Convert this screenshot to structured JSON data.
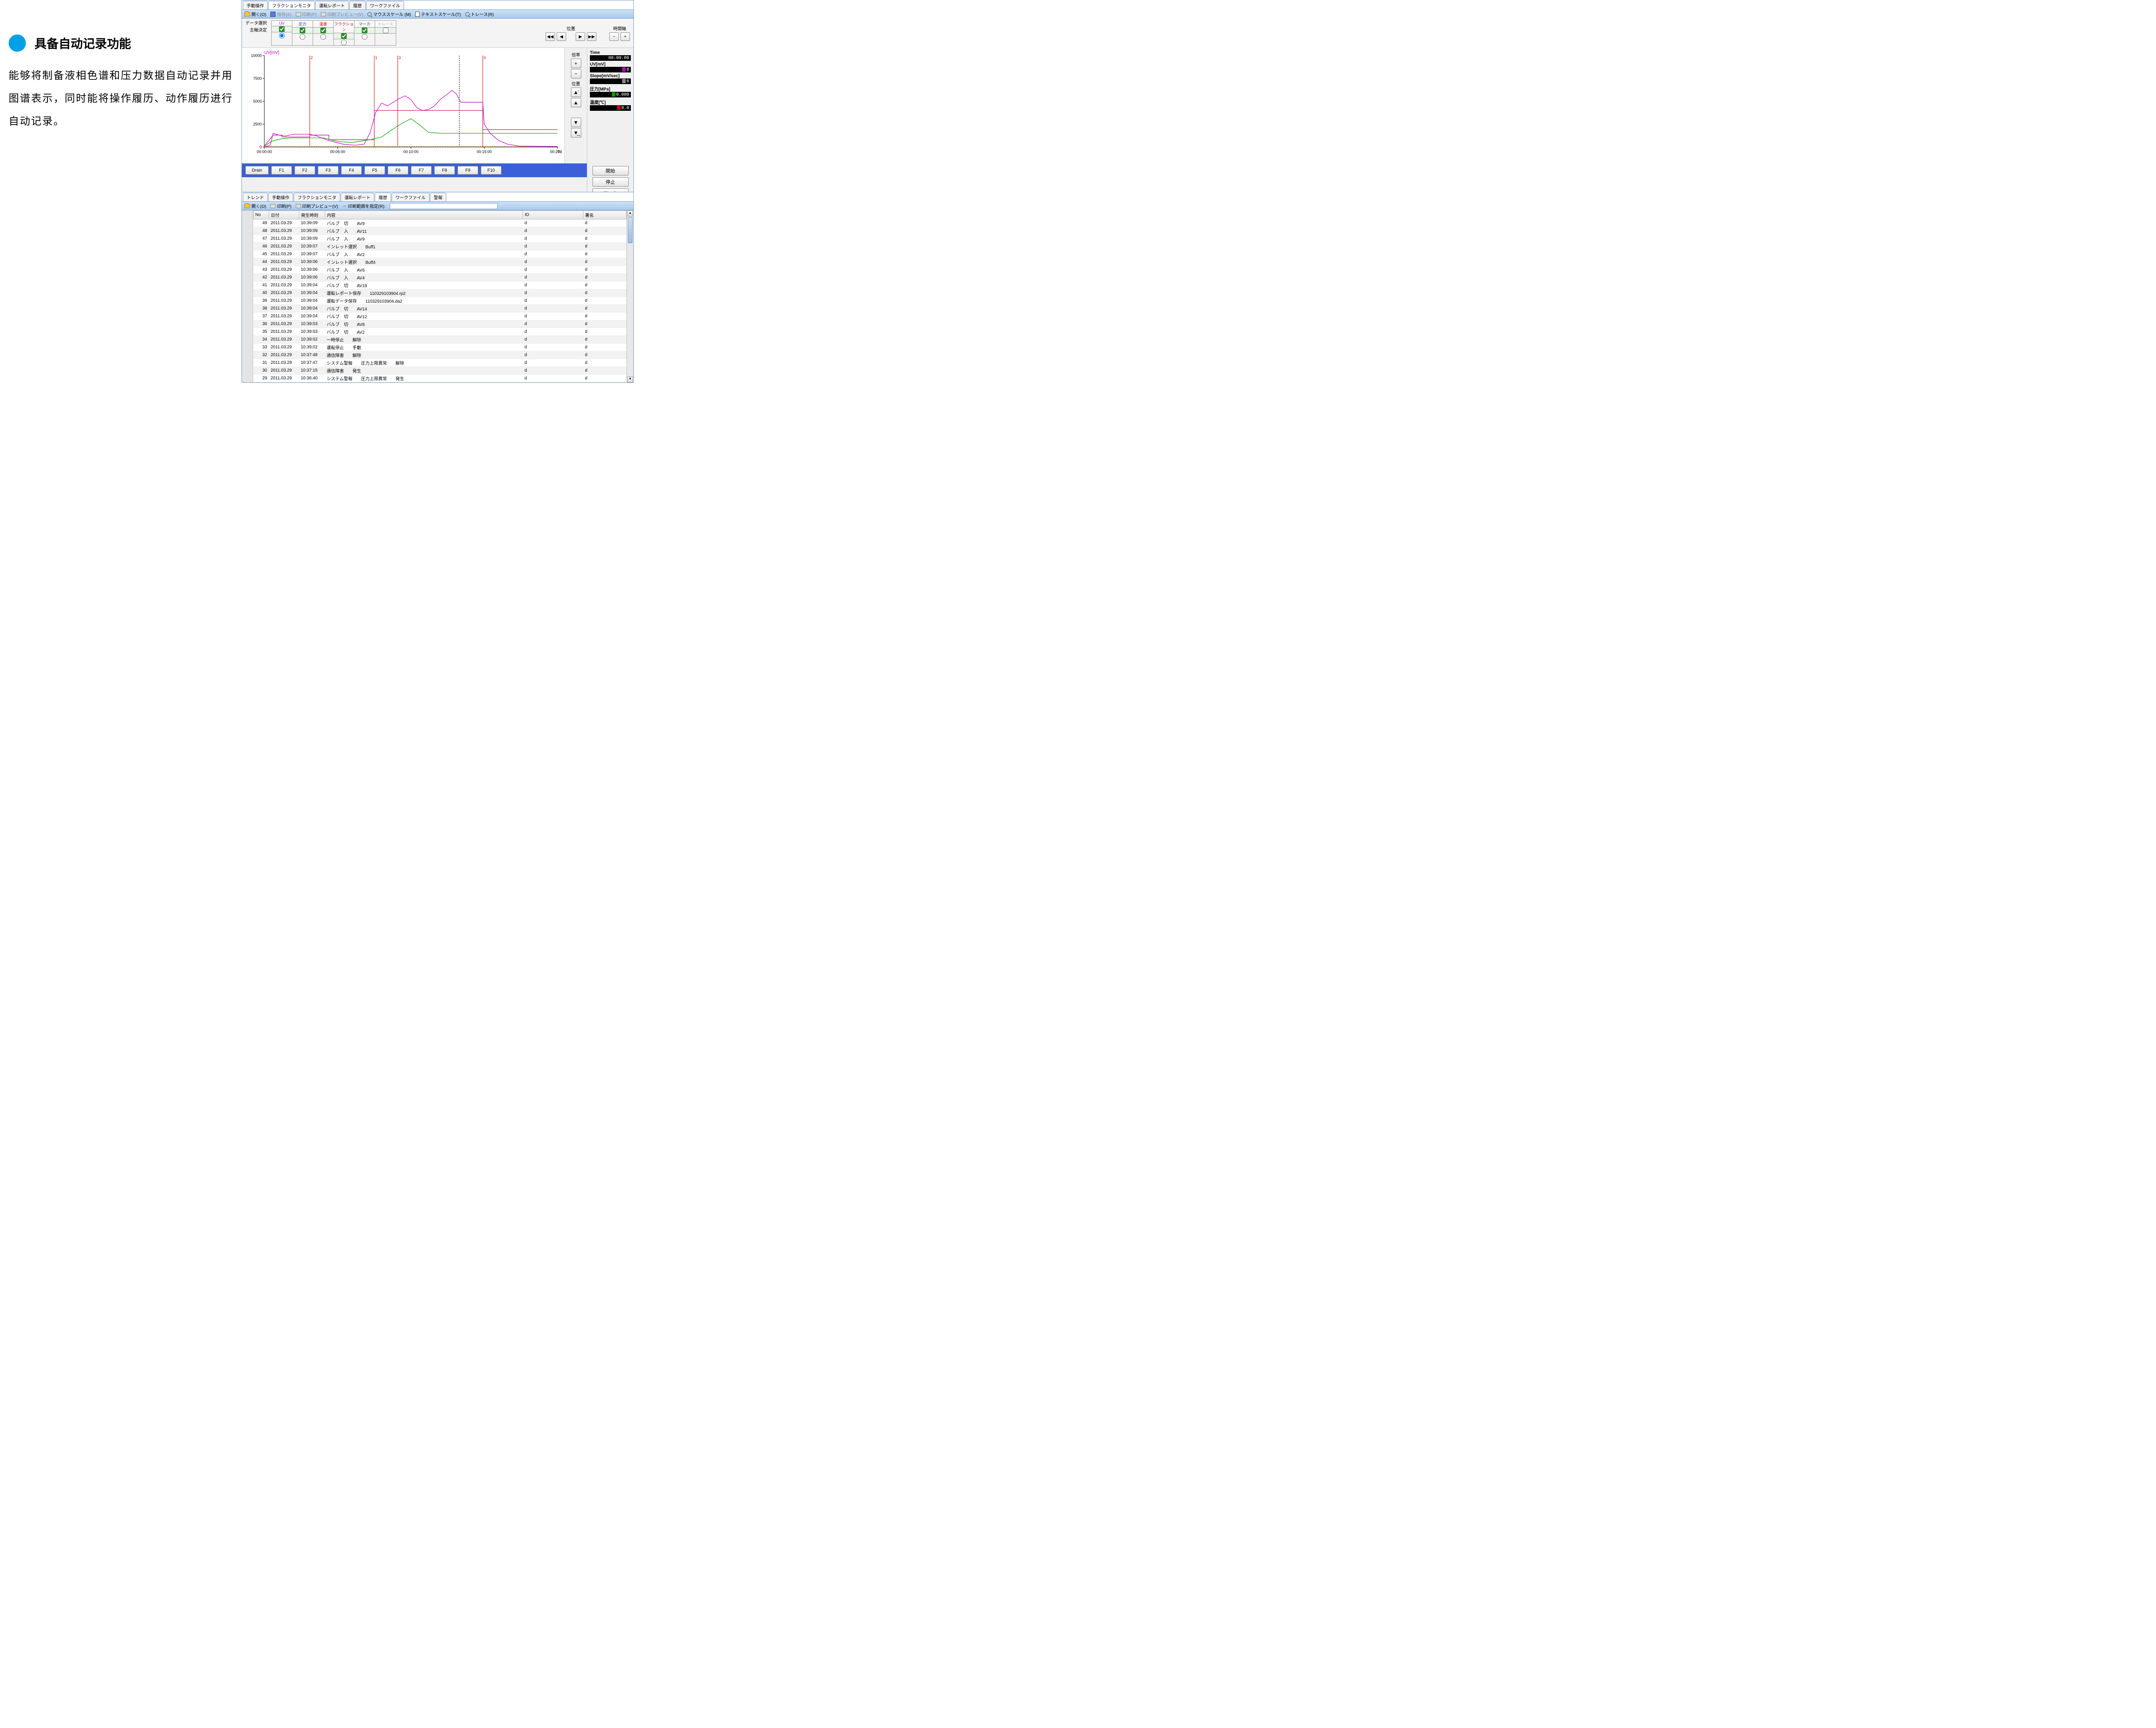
{
  "left": {
    "title": "具备自动记录功能",
    "desc": "能够将制备液相色谱和压力数据自动记录并用图谱表示，同时能将操作履历、动作履历进行自动记录。"
  },
  "win1": {
    "tabs": [
      "手動操作",
      "フラクションモニタ",
      "運転レポート",
      "履歴",
      "ワークファイル"
    ],
    "active_tab": 1,
    "toolbar": {
      "open": "開く(O)",
      "save": "保存(S)",
      "print": "印刷(P)",
      "preview": "印刷プレビュー(V)",
      "mouse": "マウススケール (M)",
      "text": "テキストスケール(T)",
      "trace": "トレース(R)"
    },
    "ctrl": {
      "row1": "データ選択",
      "row2": "主軸決定",
      "cols": [
        "UV",
        "圧力",
        "温度",
        "フラクション",
        "マーカ",
        "トレース"
      ],
      "checks": [
        true,
        true,
        true,
        true,
        true,
        false
      ],
      "radio_sel": 0
    },
    "nav": {
      "pos": "位置",
      "time": "時間軸",
      "mag": "倍率",
      "pos2": "位置"
    },
    "chart": {
      "ylabel": "UV[mV]",
      "yTicks": [
        0,
        2500,
        5000,
        7500,
        10000
      ],
      "xTicks": [
        "00:00:00",
        "00:05:00",
        "00:10:00",
        "00:15:00",
        "00:20:00"
      ],
      "xlabel": "Time",
      "markers": [
        {
          "x": 0.155,
          "label": "2",
          "color": "#d00000"
        },
        {
          "x": 0.375,
          "label": "1",
          "color": "#d00000"
        },
        {
          "x": 0.455,
          "label": "3",
          "color": "#d00000"
        },
        {
          "x": 0.665,
          "label": "",
          "color": "#000000",
          "dash": true
        },
        {
          "x": 0.745,
          "label": "0",
          "color": "#d00000"
        }
      ],
      "uv_color": "#c000c0",
      "pr_color": "#d00060",
      "te_color": "#00a000",
      "fr_color": "#d07000",
      "grid_color": "#cccccc"
    },
    "status": {
      "time_l": "Time",
      "time_v": "00:00:00",
      "uv_l": "UV[mV]",
      "uv_v": "0",
      "uv_c": "#c000c0",
      "slope_l": "Slope[mV/sec]",
      "slope_v": "0",
      "slope_c": "#888888",
      "pr_l": "圧力[MPa]",
      "pr_v": "0.000",
      "pr_c": "#00a000",
      "te_l": "温度[℃]",
      "te_v": "0.0",
      "te_c": "#d00000"
    },
    "fbar": {
      "drain": "Drain",
      "f": [
        "F1",
        "F2",
        "F3",
        "F4",
        "F5",
        "F6",
        "F7",
        "F8",
        "F9",
        "F10"
      ]
    },
    "actions": {
      "start": "開始",
      "stop": "停止",
      "mark": "マーカ"
    }
  },
  "win2": {
    "tabs": [
      "トレンド",
      "手動操作",
      "フラクションモニタ",
      "運転レポート",
      "履歴",
      "ワークファイル",
      "警報"
    ],
    "active_tab": 4,
    "toolbar": {
      "open": "開く(O)",
      "print": "印刷(P)",
      "preview": "印刷プレビュー(V)",
      "range": "印刷範囲を指定(R):"
    },
    "cols": [
      "No",
      "日付",
      "発生時刻",
      "内容",
      "ID",
      "署名"
    ],
    "rows": [
      [
        "49",
        "2011.03.29",
        "10:39:09",
        "バルブ　切　　AV9",
        "d",
        "d"
      ],
      [
        "48",
        "2011.03.29",
        "10:39:09",
        "バルブ　入　　AV11",
        "d",
        "d"
      ],
      [
        "47",
        "2011.03.29",
        "10:39:09",
        "バルブ　入　　AV9",
        "d",
        "d"
      ],
      [
        "46",
        "2011.03.29",
        "10:39:07",
        "インレット選択　　Buff1",
        "d",
        "d"
      ],
      [
        "45",
        "2011.03.29",
        "10:39:07",
        "バルブ　入　　AV2",
        "d",
        "d"
      ],
      [
        "44",
        "2011.03.29",
        "10:39:06",
        "インレット選択　　Buff4",
        "d",
        "d"
      ],
      [
        "43",
        "2011.03.29",
        "10:39:06",
        "バルブ　入　　AV6",
        "d",
        "d"
      ],
      [
        "42",
        "2011.03.29",
        "10:39:06",
        "バルブ　入　　AV4",
        "d",
        "d"
      ],
      [
        "41",
        "2011.03.29",
        "10:39:04",
        "バルブ　切　　AV19",
        "d",
        "d"
      ],
      [
        "40",
        "2011.03.29",
        "10:39:04",
        "運転レポート保存　　110329103904.rp2",
        "d",
        "d"
      ],
      [
        "39",
        "2011.03.29",
        "10:39:04",
        "運転データ保存　　110329103904.da2",
        "d",
        "d"
      ],
      [
        "38",
        "2011.03.29",
        "10:39:04",
        "バルブ　切　　AV14",
        "d",
        "d"
      ],
      [
        "37",
        "2011.03.29",
        "10:39:04",
        "バルブ　切　　AV12",
        "d",
        "d"
      ],
      [
        "36",
        "2011.03.29",
        "10:39:03",
        "バルブ　切　　AV8",
        "d",
        "d"
      ],
      [
        "35",
        "2011.03.29",
        "10:39:03",
        "バルブ　切　　AV2",
        "d",
        "d"
      ],
      [
        "34",
        "2011.03.29",
        "10:39:02",
        "一時停止　　解除",
        "d",
        "d"
      ],
      [
        "33",
        "2011.03.29",
        "10:39:02",
        "運転停止　　手動",
        "d",
        "d"
      ],
      [
        "32",
        "2011.03.29",
        "10:37:48",
        "通信障害　　解除",
        "d",
        "d"
      ],
      [
        "31",
        "2011.03.29",
        "10:37:47",
        "システム警報　　圧力上限異常　　解除",
        "d",
        "d"
      ],
      [
        "30",
        "2011.03.29",
        "10:37:15",
        "通信障害　　発生",
        "d",
        "d"
      ],
      [
        "29",
        "2011.03.29",
        "10:36:40",
        "システム警報　　圧力上限異常　　発生",
        "d",
        "d"
      ]
    ]
  }
}
